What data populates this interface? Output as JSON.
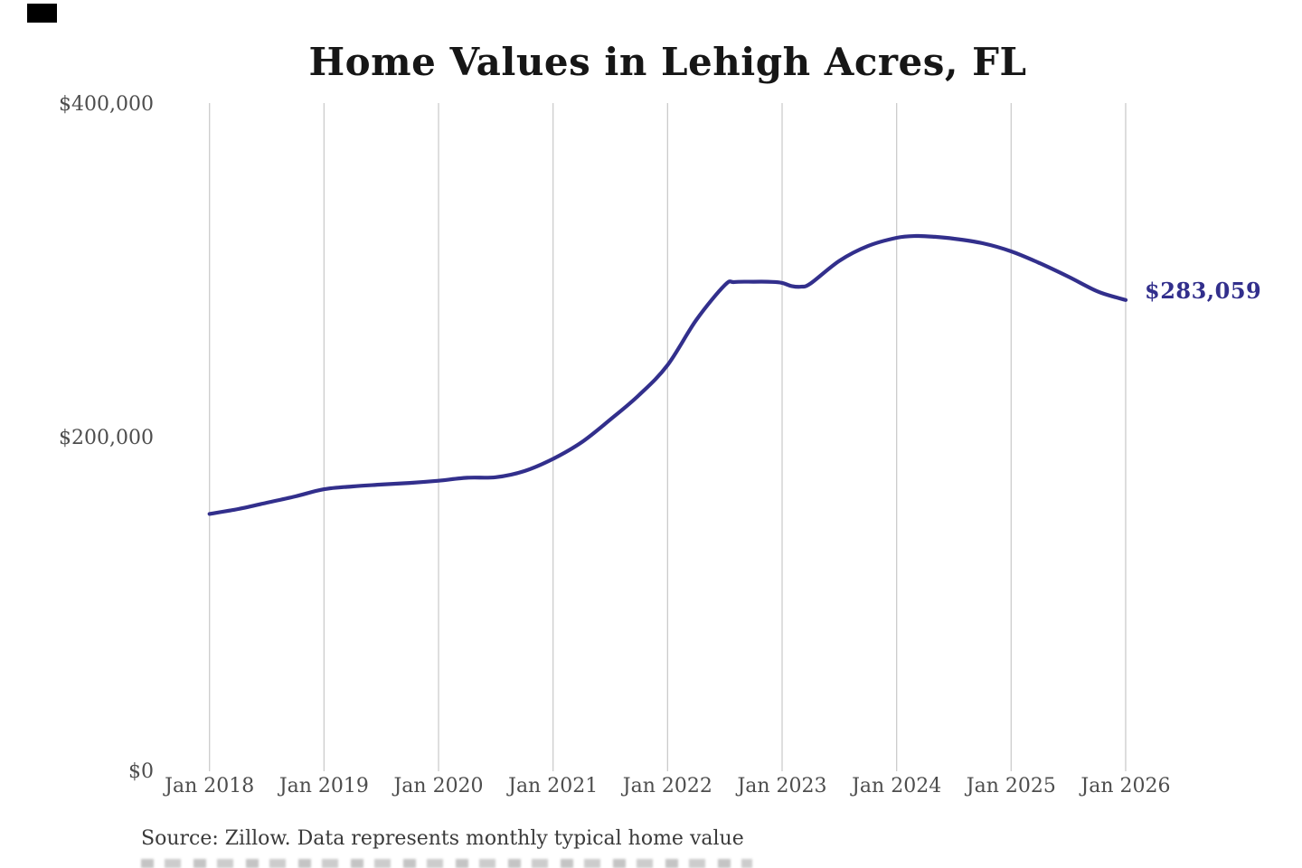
{
  "page": {
    "background": "#ffffff"
  },
  "misc": {
    "top_left_block_color": "#000000"
  },
  "chart_data": {
    "type": "line",
    "title": "Home Values in Lehigh Acres, FL",
    "source_note": "Source: Zillow. Data represents monthly typical home value",
    "end_label": "$283,059",
    "end_value": 283059,
    "xlabel": "",
    "ylabel": "",
    "ylim": [
      0,
      400000
    ],
    "grid": "vertical-only",
    "legend": "none",
    "line_color": "#322f8c",
    "gridline_color": "#cccccc",
    "axis_text_color": "#4d4d4d",
    "y_ticks": [
      {
        "label": "$0",
        "value": 0
      },
      {
        "label": "$200,000",
        "value": 200000
      },
      {
        "label": "$400,000",
        "value": 400000
      }
    ],
    "x_ticks": [
      {
        "label": "Jan 2018",
        "year": 2018
      },
      {
        "label": "Jan 2019",
        "year": 2019
      },
      {
        "label": "Jan 2020",
        "year": 2020
      },
      {
        "label": "Jan 2021",
        "year": 2021
      },
      {
        "label": "Jan 2022",
        "year": 2022
      },
      {
        "label": "Jan 2023",
        "year": 2023
      },
      {
        "label": "Jan 2024",
        "year": 2024
      },
      {
        "label": "Jan 2025",
        "year": 2025
      },
      {
        "label": "Jan 2026",
        "year": 2026
      }
    ],
    "series": [
      {
        "name": "Monthly typical home value",
        "points": [
          {
            "date": "2018-01",
            "value": 154800
          },
          {
            "date": "2018-04",
            "value": 157700
          },
          {
            "date": "2018-07",
            "value": 161500
          },
          {
            "date": "2018-10",
            "value": 165300
          },
          {
            "date": "2019-01",
            "value": 169600
          },
          {
            "date": "2019-04",
            "value": 171300
          },
          {
            "date": "2019-07",
            "value": 172400
          },
          {
            "date": "2019-10",
            "value": 173400
          },
          {
            "date": "2020-01",
            "value": 174700
          },
          {
            "date": "2020-04",
            "value": 176500
          },
          {
            "date": "2020-07",
            "value": 176800
          },
          {
            "date": "2020-10",
            "value": 180500
          },
          {
            "date": "2021-01",
            "value": 187800
          },
          {
            "date": "2021-04",
            "value": 197800
          },
          {
            "date": "2021-07",
            "value": 211400
          },
          {
            "date": "2021-10",
            "value": 226000
          },
          {
            "date": "2022-01",
            "value": 244000
          },
          {
            "date": "2022-04",
            "value": 271000
          },
          {
            "date": "2022-07",
            "value": 292000
          },
          {
            "date": "2022-08",
            "value": 293800
          },
          {
            "date": "2022-10",
            "value": 294000
          },
          {
            "date": "2022-12",
            "value": 293900
          },
          {
            "date": "2023-01",
            "value": 293300
          },
          {
            "date": "2023-02",
            "value": 291400
          },
          {
            "date": "2023-03",
            "value": 291000
          },
          {
            "date": "2023-04",
            "value": 293000
          },
          {
            "date": "2023-07",
            "value": 306500
          },
          {
            "date": "2023-10",
            "value": 315400
          },
          {
            "date": "2024-01",
            "value": 320300
          },
          {
            "date": "2024-03",
            "value": 321400
          },
          {
            "date": "2024-05",
            "value": 320900
          },
          {
            "date": "2024-07",
            "value": 319800
          },
          {
            "date": "2024-10",
            "value": 317100
          },
          {
            "date": "2025-01",
            "value": 312200
          },
          {
            "date": "2025-04",
            "value": 305100
          },
          {
            "date": "2025-07",
            "value": 297000
          },
          {
            "date": "2025-10",
            "value": 288300
          },
          {
            "date": "2025-12",
            "value": 284600
          },
          {
            "date": "2026-01",
            "value": 283059
          }
        ]
      }
    ]
  }
}
